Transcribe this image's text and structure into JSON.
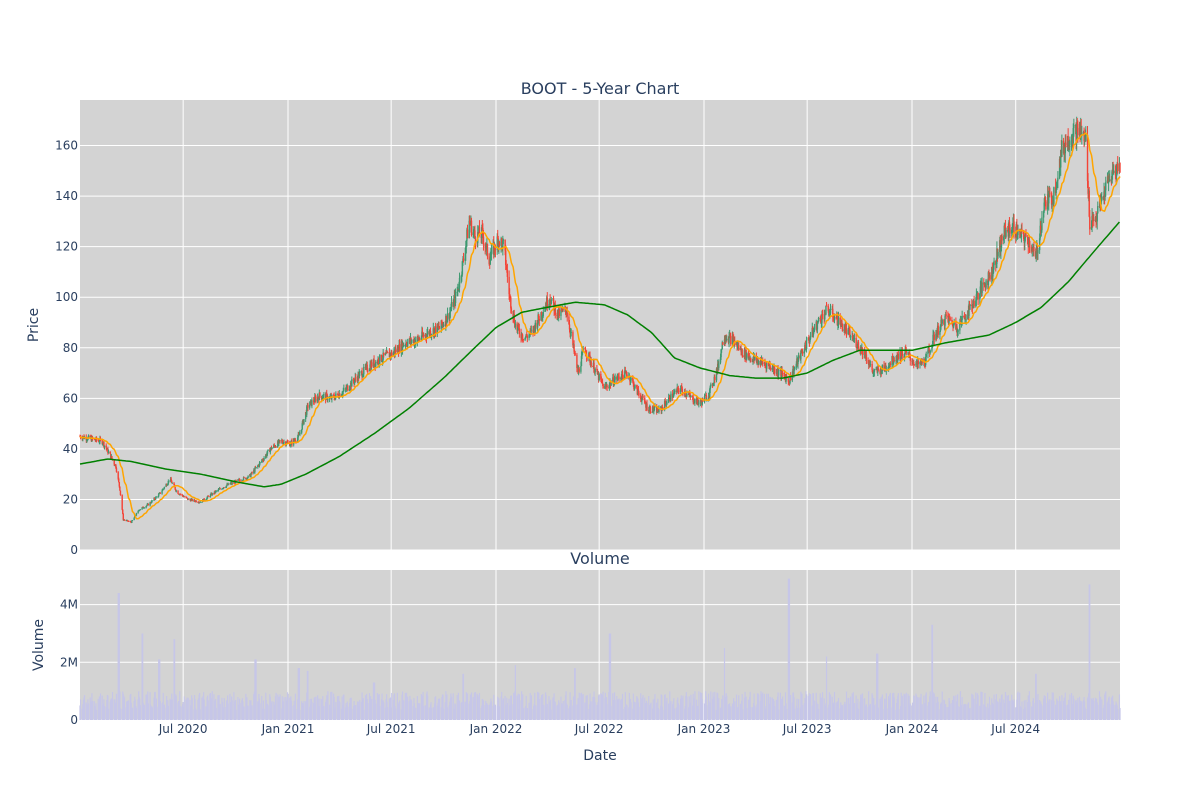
{
  "chart_data": {
    "type": "candlestick",
    "colors": {
      "background": "#d3d3d3",
      "grid": "#ffffff",
      "up": "#3d9970",
      "down": "#f44336",
      "ma_short": "#ffa500",
      "ma_long": "#008000",
      "volume": "#c6c6e8"
    },
    "price_panel": {
      "title": "BOOT - 5-Year Chart",
      "ylabel": "Price",
      "ylim": [
        0,
        178
      ],
      "yticks": [
        "0",
        "20",
        "40",
        "60",
        "80",
        "100",
        "120",
        "140",
        "160"
      ],
      "grid": true
    },
    "volume_panel": {
      "title": "Volume",
      "ylabel": "Volume",
      "xlabel": "Date",
      "ylim": [
        0,
        5200000
      ],
      "yticks": [
        "0",
        "2M",
        "4M"
      ],
      "grid": true
    },
    "x_range": [
      "2020-01-02",
      "2024-12-31"
    ],
    "x_ticks": [
      {
        "date": "2020-07-01",
        "label": "Jul 2020"
      },
      {
        "date": "2021-01-01",
        "label": "Jan 2021"
      },
      {
        "date": "2021-07-01",
        "label": "Jul 2021"
      },
      {
        "date": "2022-01-01",
        "label": "Jan 2022"
      },
      {
        "date": "2022-07-01",
        "label": "Jul 2022"
      },
      {
        "date": "2023-01-01",
        "label": "Jan 2023"
      },
      {
        "date": "2023-07-01",
        "label": "Jul 2023"
      },
      {
        "date": "2024-01-01",
        "label": "Jan 2024"
      },
      {
        "date": "2024-07-01",
        "label": "Jul 2024"
      }
    ],
    "price_path": [
      [
        "2020-01-02",
        45
      ],
      [
        "2020-01-20",
        44
      ],
      [
        "2020-02-10",
        43
      ],
      [
        "2020-02-25",
        37
      ],
      [
        "2020-03-05",
        33
      ],
      [
        "2020-03-12",
        24
      ],
      [
        "2020-03-18",
        12
      ],
      [
        "2020-04-01",
        11
      ],
      [
        "2020-04-15",
        16
      ],
      [
        "2020-05-01",
        18
      ],
      [
        "2020-05-20",
        22
      ],
      [
        "2020-06-08",
        28
      ],
      [
        "2020-06-20",
        23
      ],
      [
        "2020-07-10",
        20
      ],
      [
        "2020-08-01",
        19
      ],
      [
        "2020-08-20",
        22
      ],
      [
        "2020-09-10",
        25
      ],
      [
        "2020-10-01",
        27
      ],
      [
        "2020-10-25",
        29
      ],
      [
        "2020-11-15",
        35
      ],
      [
        "2020-12-01",
        40
      ],
      [
        "2020-12-20",
        43
      ],
      [
        "2021-01-05",
        42
      ],
      [
        "2021-01-20",
        45
      ],
      [
        "2021-02-05",
        57
      ],
      [
        "2021-02-25",
        61
      ],
      [
        "2021-03-20",
        60
      ],
      [
        "2021-04-10",
        63
      ],
      [
        "2021-05-01",
        68
      ],
      [
        "2021-05-25",
        73
      ],
      [
        "2021-06-15",
        76
      ],
      [
        "2021-07-05",
        78
      ],
      [
        "2021-07-25",
        82
      ],
      [
        "2021-08-15",
        83
      ],
      [
        "2021-09-05",
        86
      ],
      [
        "2021-09-25",
        88
      ],
      [
        "2021-10-10",
        93
      ],
      [
        "2021-10-25",
        102
      ],
      [
        "2021-11-05",
        115
      ],
      [
        "2021-11-15",
        130
      ],
      [
        "2021-11-25",
        124
      ],
      [
        "2021-12-08",
        125
      ],
      [
        "2021-12-20",
        115
      ],
      [
        "2022-01-05",
        123
      ],
      [
        "2022-01-15",
        120
      ],
      [
        "2022-01-25",
        100
      ],
      [
        "2022-02-05",
        88
      ],
      [
        "2022-02-20",
        84
      ],
      [
        "2022-03-05",
        86
      ],
      [
        "2022-03-20",
        93
      ],
      [
        "2022-04-05",
        100
      ],
      [
        "2022-04-20",
        93
      ],
      [
        "2022-05-05",
        95
      ],
      [
        "2022-05-15",
        82
      ],
      [
        "2022-05-25",
        70
      ],
      [
        "2022-06-05",
        80
      ],
      [
        "2022-06-20",
        73
      ],
      [
        "2022-07-10",
        64
      ],
      [
        "2022-08-01",
        68
      ],
      [
        "2022-08-20",
        70
      ],
      [
        "2022-09-05",
        63
      ],
      [
        "2022-09-25",
        56
      ],
      [
        "2022-10-15",
        55
      ],
      [
        "2022-11-01",
        60
      ],
      [
        "2022-11-20",
        64
      ],
      [
        "2022-12-10",
        60
      ],
      [
        "2022-12-25",
        58
      ],
      [
        "2023-01-10",
        62
      ],
      [
        "2023-01-25",
        72
      ],
      [
        "2023-02-05",
        85
      ],
      [
        "2023-02-20",
        83
      ],
      [
        "2023-03-10",
        78
      ],
      [
        "2023-04-01",
        75
      ],
      [
        "2023-04-25",
        73
      ],
      [
        "2023-05-15",
        70
      ],
      [
        "2023-05-30",
        67
      ],
      [
        "2023-06-15",
        75
      ],
      [
        "2023-07-01",
        82
      ],
      [
        "2023-07-20",
        90
      ],
      [
        "2023-08-05",
        95
      ],
      [
        "2023-08-20",
        92
      ],
      [
        "2023-09-10",
        86
      ],
      [
        "2023-09-25",
        82
      ],
      [
        "2023-10-10",
        78
      ],
      [
        "2023-10-25",
        70
      ],
      [
        "2023-11-15",
        72
      ],
      [
        "2023-12-01",
        76
      ],
      [
        "2023-12-20",
        78
      ],
      [
        "2024-01-10",
        73
      ],
      [
        "2024-01-25",
        75
      ],
      [
        "2024-02-10",
        85
      ],
      [
        "2024-03-01",
        92
      ],
      [
        "2024-03-20",
        88
      ],
      [
        "2024-04-10",
        95
      ],
      [
        "2024-05-01",
        103
      ],
      [
        "2024-05-20",
        110
      ],
      [
        "2024-06-10",
        125
      ],
      [
        "2024-06-25",
        128
      ],
      [
        "2024-07-10",
        124
      ],
      [
        "2024-07-25",
        122
      ],
      [
        "2024-08-05",
        115
      ],
      [
        "2024-08-20",
        137
      ],
      [
        "2024-09-05",
        140
      ],
      [
        "2024-09-20",
        158
      ],
      [
        "2024-10-05",
        164
      ],
      [
        "2024-10-20",
        166
      ],
      [
        "2024-11-01",
        162
      ],
      [
        "2024-11-08",
        130
      ],
      [
        "2024-11-20",
        132
      ],
      [
        "2024-12-01",
        140
      ],
      [
        "2024-12-15",
        148
      ],
      [
        "2024-12-31",
        152
      ]
    ],
    "ma_long_path": [
      [
        "2020-01-02",
        34
      ],
      [
        "2020-02-20",
        36
      ],
      [
        "2020-04-01",
        35
      ],
      [
        "2020-06-01",
        32
      ],
      [
        "2020-08-01",
        30
      ],
      [
        "2020-10-01",
        27
      ],
      [
        "2020-11-20",
        25
      ],
      [
        "2020-12-20",
        26
      ],
      [
        "2021-02-01",
        30
      ],
      [
        "2021-04-01",
        37
      ],
      [
        "2021-06-01",
        46
      ],
      [
        "2021-08-01",
        56
      ],
      [
        "2021-10-01",
        68
      ],
      [
        "2021-11-20",
        79
      ],
      [
        "2022-01-01",
        88
      ],
      [
        "2022-02-15",
        94
      ],
      [
        "2022-04-01",
        96
      ],
      [
        "2022-05-20",
        98
      ],
      [
        "2022-07-10",
        97
      ],
      [
        "2022-08-20",
        93
      ],
      [
        "2022-10-01",
        86
      ],
      [
        "2022-11-10",
        76
      ],
      [
        "2022-12-25",
        72
      ],
      [
        "2023-02-15",
        69
      ],
      [
        "2023-04-01",
        68
      ],
      [
        "2023-05-20",
        68
      ],
      [
        "2023-07-01",
        70
      ],
      [
        "2023-08-15",
        75
      ],
      [
        "2023-10-01",
        79
      ],
      [
        "2023-11-15",
        79
      ],
      [
        "2024-01-01",
        79
      ],
      [
        "2024-03-01",
        82
      ],
      [
        "2024-05-15",
        85
      ],
      [
        "2024-07-01",
        90
      ],
      [
        "2024-08-15",
        96
      ],
      [
        "2024-10-01",
        106
      ],
      [
        "2024-11-15",
        118
      ],
      [
        "2024-12-31",
        130
      ]
    ],
    "volume_spikes": [
      [
        "2020-03-10",
        4400000
      ],
      [
        "2020-04-20",
        3000000
      ],
      [
        "2020-05-20",
        2100000
      ],
      [
        "2020-06-15",
        2800000
      ],
      [
        "2020-11-05",
        2100000
      ],
      [
        "2021-01-20",
        1800000
      ],
      [
        "2021-02-05",
        1700000
      ],
      [
        "2021-06-01",
        1300000
      ],
      [
        "2021-11-05",
        1600000
      ],
      [
        "2022-02-05",
        1900000
      ],
      [
        "2022-05-20",
        1800000
      ],
      [
        "2022-07-20",
        3000000
      ],
      [
        "2023-02-05",
        2500000
      ],
      [
        "2023-05-30",
        4900000
      ],
      [
        "2023-08-05",
        2200000
      ],
      [
        "2023-11-01",
        2300000
      ],
      [
        "2024-02-05",
        3300000
      ],
      [
        "2024-08-05",
        1600000
      ],
      [
        "2024-11-08",
        4700000
      ]
    ]
  }
}
